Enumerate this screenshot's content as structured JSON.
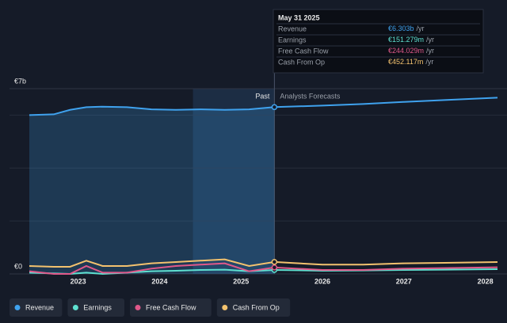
{
  "chart_data": {
    "type": "line",
    "x": [
      2022.4,
      2022.7,
      2022.9,
      2023.1,
      2023.3,
      2023.6,
      2023.9,
      2024.2,
      2024.5,
      2024.8,
      2025.1,
      2025.41,
      2026,
      2026.5,
      2027,
      2027.5,
      2028.15
    ],
    "xlim": [
      2022.4,
      2028.15
    ],
    "xticks": [
      2023,
      2024,
      2025,
      2026,
      2027,
      2028
    ],
    "ylim": [
      0,
      7
    ],
    "yticks": [
      {
        "value": 0,
        "label": "€0"
      },
      {
        "value": 7,
        "label": "€7b"
      }
    ],
    "grid": true,
    "past_label": "Past",
    "forecast_label": "Analysts Forecasts",
    "past_end": 2025.41,
    "highlight_range": [
      2024.41,
      2025.41
    ],
    "series": [
      {
        "name": "Revenue",
        "color": "#3fa2ee",
        "area": true,
        "values": [
          6.0,
          6.03,
          6.2,
          6.3,
          6.32,
          6.3,
          6.22,
          6.2,
          6.22,
          6.2,
          6.22,
          6.303,
          6.36,
          6.42,
          6.5,
          6.57,
          6.66
        ]
      },
      {
        "name": "Earnings",
        "color": "#5ee0d0",
        "values": [
          0.05,
          0.02,
          0.0,
          0.05,
          0.0,
          0.05,
          0.1,
          0.12,
          0.15,
          0.16,
          0.1,
          0.151,
          0.12,
          0.13,
          0.15,
          0.16,
          0.18
        ]
      },
      {
        "name": "Free Cash Flow",
        "color": "#e0588a",
        "values": [
          0.1,
          0.0,
          0.0,
          0.3,
          0.05,
          0.05,
          0.2,
          0.3,
          0.35,
          0.4,
          0.1,
          0.244,
          0.15,
          0.15,
          0.2,
          0.22,
          0.25
        ]
      },
      {
        "name": "Cash From Op",
        "color": "#f3c26e",
        "values": [
          0.3,
          0.27,
          0.27,
          0.5,
          0.3,
          0.3,
          0.4,
          0.45,
          0.5,
          0.55,
          0.3,
          0.452,
          0.35,
          0.35,
          0.4,
          0.42,
          0.45
        ]
      }
    ],
    "tooltip": {
      "title": "May 31 2025",
      "unit": "/yr",
      "rows": [
        {
          "label": "Revenue",
          "value": "€6.303b"
        },
        {
          "label": "Earnings",
          "value": "€151.279m"
        },
        {
          "label": "Free Cash Flow",
          "value": "€244.029m"
        },
        {
          "label": "Cash From Op",
          "value": "€452.117m"
        }
      ]
    }
  }
}
